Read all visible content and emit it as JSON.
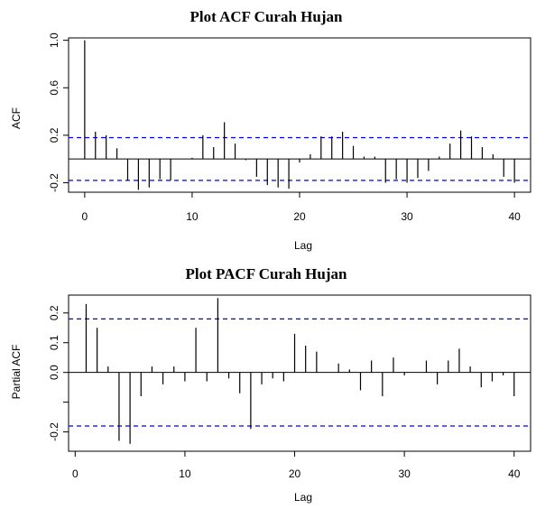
{
  "chart_data": [
    {
      "type": "bar",
      "style": "lollipop-spikes",
      "title": "Plot ACF Curah Hujan",
      "xlabel": "Lag",
      "ylabel": "ACF",
      "xlim": [
        -1.5,
        41.5
      ],
      "ylim": [
        -0.28,
        1.02
      ],
      "x_ticks": [
        0,
        10,
        20,
        30,
        40
      ],
      "y_ticks": [
        -0.2,
        0.2,
        0.6,
        1.0
      ],
      "y_tick_labels": [
        "-0.2",
        "0.2",
        "0.6",
        "1.0"
      ],
      "confidence_limits": [
        0.18,
        -0.18
      ],
      "lags": [
        0,
        1,
        2,
        3,
        4,
        5,
        6,
        7,
        8,
        9,
        10,
        11,
        12,
        13,
        14,
        15,
        16,
        17,
        18,
        19,
        20,
        21,
        22,
        23,
        24,
        25,
        26,
        27,
        28,
        29,
        30,
        31,
        32,
        33,
        34,
        35,
        36,
        37,
        38,
        39,
        40
      ],
      "values": [
        1.0,
        0.23,
        0.2,
        0.09,
        -0.18,
        -0.26,
        -0.24,
        -0.17,
        -0.18,
        0.0,
        0.01,
        0.2,
        0.1,
        0.31,
        0.13,
        -0.01,
        -0.15,
        -0.22,
        -0.24,
        -0.25,
        -0.03,
        0.04,
        0.19,
        0.19,
        0.23,
        0.11,
        0.02,
        0.02,
        -0.2,
        -0.17,
        -0.2,
        -0.16,
        -0.1,
        0.02,
        0.13,
        0.24,
        0.19,
        0.1,
        0.04,
        -0.15,
        -0.2
      ],
      "colors": {
        "spike": "#000000",
        "ci_line": "#0000ee",
        "zero_line": "#000000"
      },
      "grid": false
    },
    {
      "type": "bar",
      "style": "lollipop-spikes",
      "title": "Plot PACF Curah Hujan",
      "xlabel": "Lag",
      "ylabel": "Partial ACF",
      "xlim": [
        -0.6,
        41.5
      ],
      "ylim": [
        -0.265,
        0.26
      ],
      "x_ticks": [
        0,
        10,
        20,
        30,
        40
      ],
      "y_ticks": [
        -0.2,
        -0.1,
        0.0,
        0.1,
        0.2
      ],
      "y_tick_labels": [
        "-0.2",
        "",
        "0.0",
        "0.1",
        "0.2"
      ],
      "confidence_limits": [
        0.18,
        -0.18
      ],
      "lags": [
        1,
        2,
        3,
        4,
        5,
        6,
        7,
        8,
        9,
        10,
        11,
        12,
        13,
        14,
        15,
        16,
        17,
        18,
        19,
        20,
        21,
        22,
        23,
        24,
        25,
        26,
        27,
        28,
        29,
        30,
        31,
        32,
        33,
        34,
        35,
        36,
        37,
        38,
        39,
        40
      ],
      "values": [
        0.23,
        0.15,
        0.02,
        -0.23,
        -0.24,
        -0.08,
        0.02,
        -0.04,
        0.02,
        -0.03,
        0.15,
        -0.03,
        0.25,
        -0.02,
        -0.07,
        -0.19,
        -0.04,
        -0.02,
        -0.03,
        0.13,
        0.09,
        0.07,
        0.0,
        0.03,
        0.01,
        -0.06,
        0.04,
        -0.08,
        0.05,
        -0.01,
        0.0,
        0.04,
        -0.04,
        0.04,
        0.08,
        0.02,
        -0.05,
        -0.03,
        -0.01,
        -0.08
      ],
      "colors": {
        "spike": "#000000",
        "ci_line": "#0000ee",
        "zero_line": "#000000"
      },
      "grid": false
    }
  ]
}
